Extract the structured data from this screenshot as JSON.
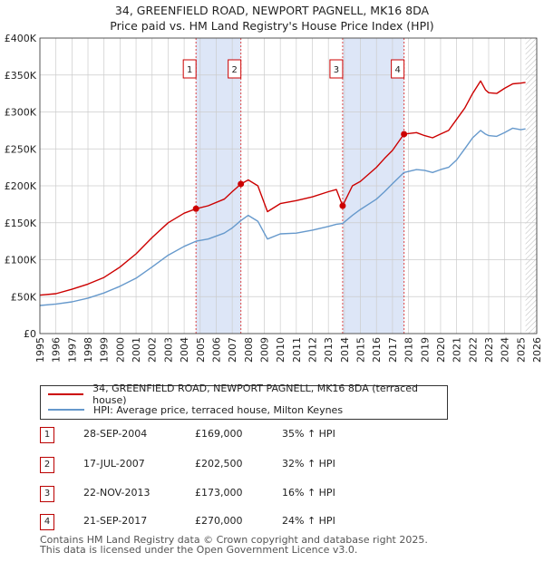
{
  "title_line1": "34, GREENFIELD ROAD, NEWPORT PAGNELL, MK16 8DA",
  "title_line2": "Price paid vs. HM Land Registry's House Price Index (HPI)",
  "colors": {
    "price": "#cc0000",
    "hpi": "#6699cc",
    "shade": "#dde6f7",
    "marker_border": "#cc0000",
    "grid": "#cccccc"
  },
  "chart_data": {
    "type": "line",
    "x_range": [
      1995.0,
      2026.0
    ],
    "ylim": [
      0,
      400000
    ],
    "y_ticks": [
      {
        "v": 0,
        "label": "£0"
      },
      {
        "v": 50000,
        "label": "£50K"
      },
      {
        "v": 100000,
        "label": "£100K"
      },
      {
        "v": 150000,
        "label": "£150K"
      },
      {
        "v": 200000,
        "label": "£200K"
      },
      {
        "v": 250000,
        "label": "£250K"
      },
      {
        "v": 300000,
        "label": "£300K"
      },
      {
        "v": 350000,
        "label": "£350K"
      },
      {
        "v": 400000,
        "label": "£400K"
      }
    ],
    "x_ticks": [
      "1995",
      "1996",
      "1997",
      "1998",
      "1999",
      "2000",
      "2001",
      "2002",
      "2003",
      "2004",
      "2005",
      "2006",
      "2007",
      "2008",
      "2009",
      "2010",
      "2011",
      "2012",
      "2013",
      "2014",
      "2015",
      "2016",
      "2017",
      "2018",
      "2019",
      "2020",
      "2021",
      "2022",
      "2023",
      "2024",
      "2025",
      "2026"
    ],
    "shaded_spans": [
      [
        2004.74,
        2007.54
      ],
      [
        2013.89,
        2017.72
      ]
    ],
    "future_hatch_from": 2025.3,
    "series": [
      {
        "name": "34, GREENFIELD ROAD, NEWPORT PAGNELL, MK16 8DA (terraced house)",
        "color": "#cc0000",
        "x": [
          1995.0,
          1996.0,
          1997.0,
          1998.0,
          1999.0,
          2000.0,
          2001.0,
          2002.0,
          2003.0,
          2004.0,
          2004.74,
          2005.5,
          2006.5,
          2007.0,
          2007.54,
          2008.0,
          2008.6,
          2009.2,
          2010.0,
          2011.0,
          2012.0,
          2013.0,
          2013.5,
          2013.89,
          2014.5,
          2015.0,
          2016.0,
          2016.5,
          2017.0,
          2017.72,
          2018.5,
          2019.0,
          2019.5,
          2020.0,
          2020.5,
          2021.0,
          2021.5,
          2022.0,
          2022.5,
          2022.8,
          2023.0,
          2023.5,
          2024.0,
          2024.5,
          2025.0,
          2025.3
        ],
        "y": [
          52000,
          54000,
          60000,
          67000,
          76000,
          90000,
          108000,
          130000,
          150000,
          163000,
          169000,
          173000,
          182000,
          192000,
          202500,
          208000,
          200000,
          165000,
          176000,
          180000,
          185000,
          192000,
          195000,
          173000,
          200000,
          206000,
          225000,
          237000,
          248000,
          270000,
          272000,
          268000,
          265000,
          270000,
          275000,
          290000,
          305000,
          325000,
          342000,
          330000,
          326000,
          325000,
          332000,
          338000,
          339000,
          340000
        ]
      },
      {
        "name": "HPI: Average price, terraced house, Milton Keynes",
        "color": "#6699cc",
        "x": [
          1995.0,
          1996.0,
          1997.0,
          1998.0,
          1999.0,
          2000.0,
          2001.0,
          2002.0,
          2003.0,
          2004.0,
          2004.74,
          2005.5,
          2006.5,
          2007.0,
          2007.54,
          2008.0,
          2008.6,
          2009.2,
          2010.0,
          2011.0,
          2012.0,
          2013.0,
          2013.5,
          2013.89,
          2014.5,
          2015.0,
          2016.0,
          2016.5,
          2017.0,
          2017.72,
          2018.5,
          2019.0,
          2019.5,
          2020.0,
          2020.5,
          2021.0,
          2021.5,
          2022.0,
          2022.5,
          2022.8,
          2023.0,
          2023.5,
          2024.0,
          2024.5,
          2025.0,
          2025.3
        ],
        "y": [
          38000,
          40000,
          43000,
          48000,
          55000,
          64000,
          75000,
          90000,
          106000,
          118000,
          125000,
          128000,
          136000,
          143000,
          153000,
          160000,
          152000,
          128000,
          135000,
          136000,
          140000,
          145000,
          148000,
          149000,
          160000,
          168000,
          182000,
          192000,
          203000,
          218000,
          222000,
          221000,
          218000,
          222000,
          225000,
          235000,
          250000,
          265000,
          275000,
          270000,
          268000,
          267000,
          272000,
          278000,
          276000,
          277000
        ]
      }
    ],
    "markers": [
      {
        "label": "1",
        "x": 2004.74,
        "y": 169000
      },
      {
        "label": "2",
        "x": 2007.54,
        "y": 202500
      },
      {
        "label": "3",
        "x": 2013.89,
        "y": 173000
      },
      {
        "label": "4",
        "x": 2017.72,
        "y": 270000
      }
    ]
  },
  "legend": {
    "price_label": "34, GREENFIELD ROAD, NEWPORT PAGNELL, MK16 8DA (terraced house)",
    "hpi_label": "HPI: Average price, terraced house, Milton Keynes"
  },
  "transactions": [
    {
      "num": "1",
      "date": "28-SEP-2004",
      "price": "£169,000",
      "hpi": "35% ↑ HPI"
    },
    {
      "num": "2",
      "date": "17-JUL-2007",
      "price": "£202,500",
      "hpi": "32% ↑ HPI"
    },
    {
      "num": "3",
      "date": "22-NOV-2013",
      "price": "£173,000",
      "hpi": "16% ↑ HPI"
    },
    {
      "num": "4",
      "date": "21-SEP-2017",
      "price": "£270,000",
      "hpi": "24% ↑ HPI"
    }
  ],
  "footer_line1": "Contains HM Land Registry data © Crown copyright and database right 2025.",
  "footer_line2": "This data is licensed under the Open Government Licence v3.0."
}
